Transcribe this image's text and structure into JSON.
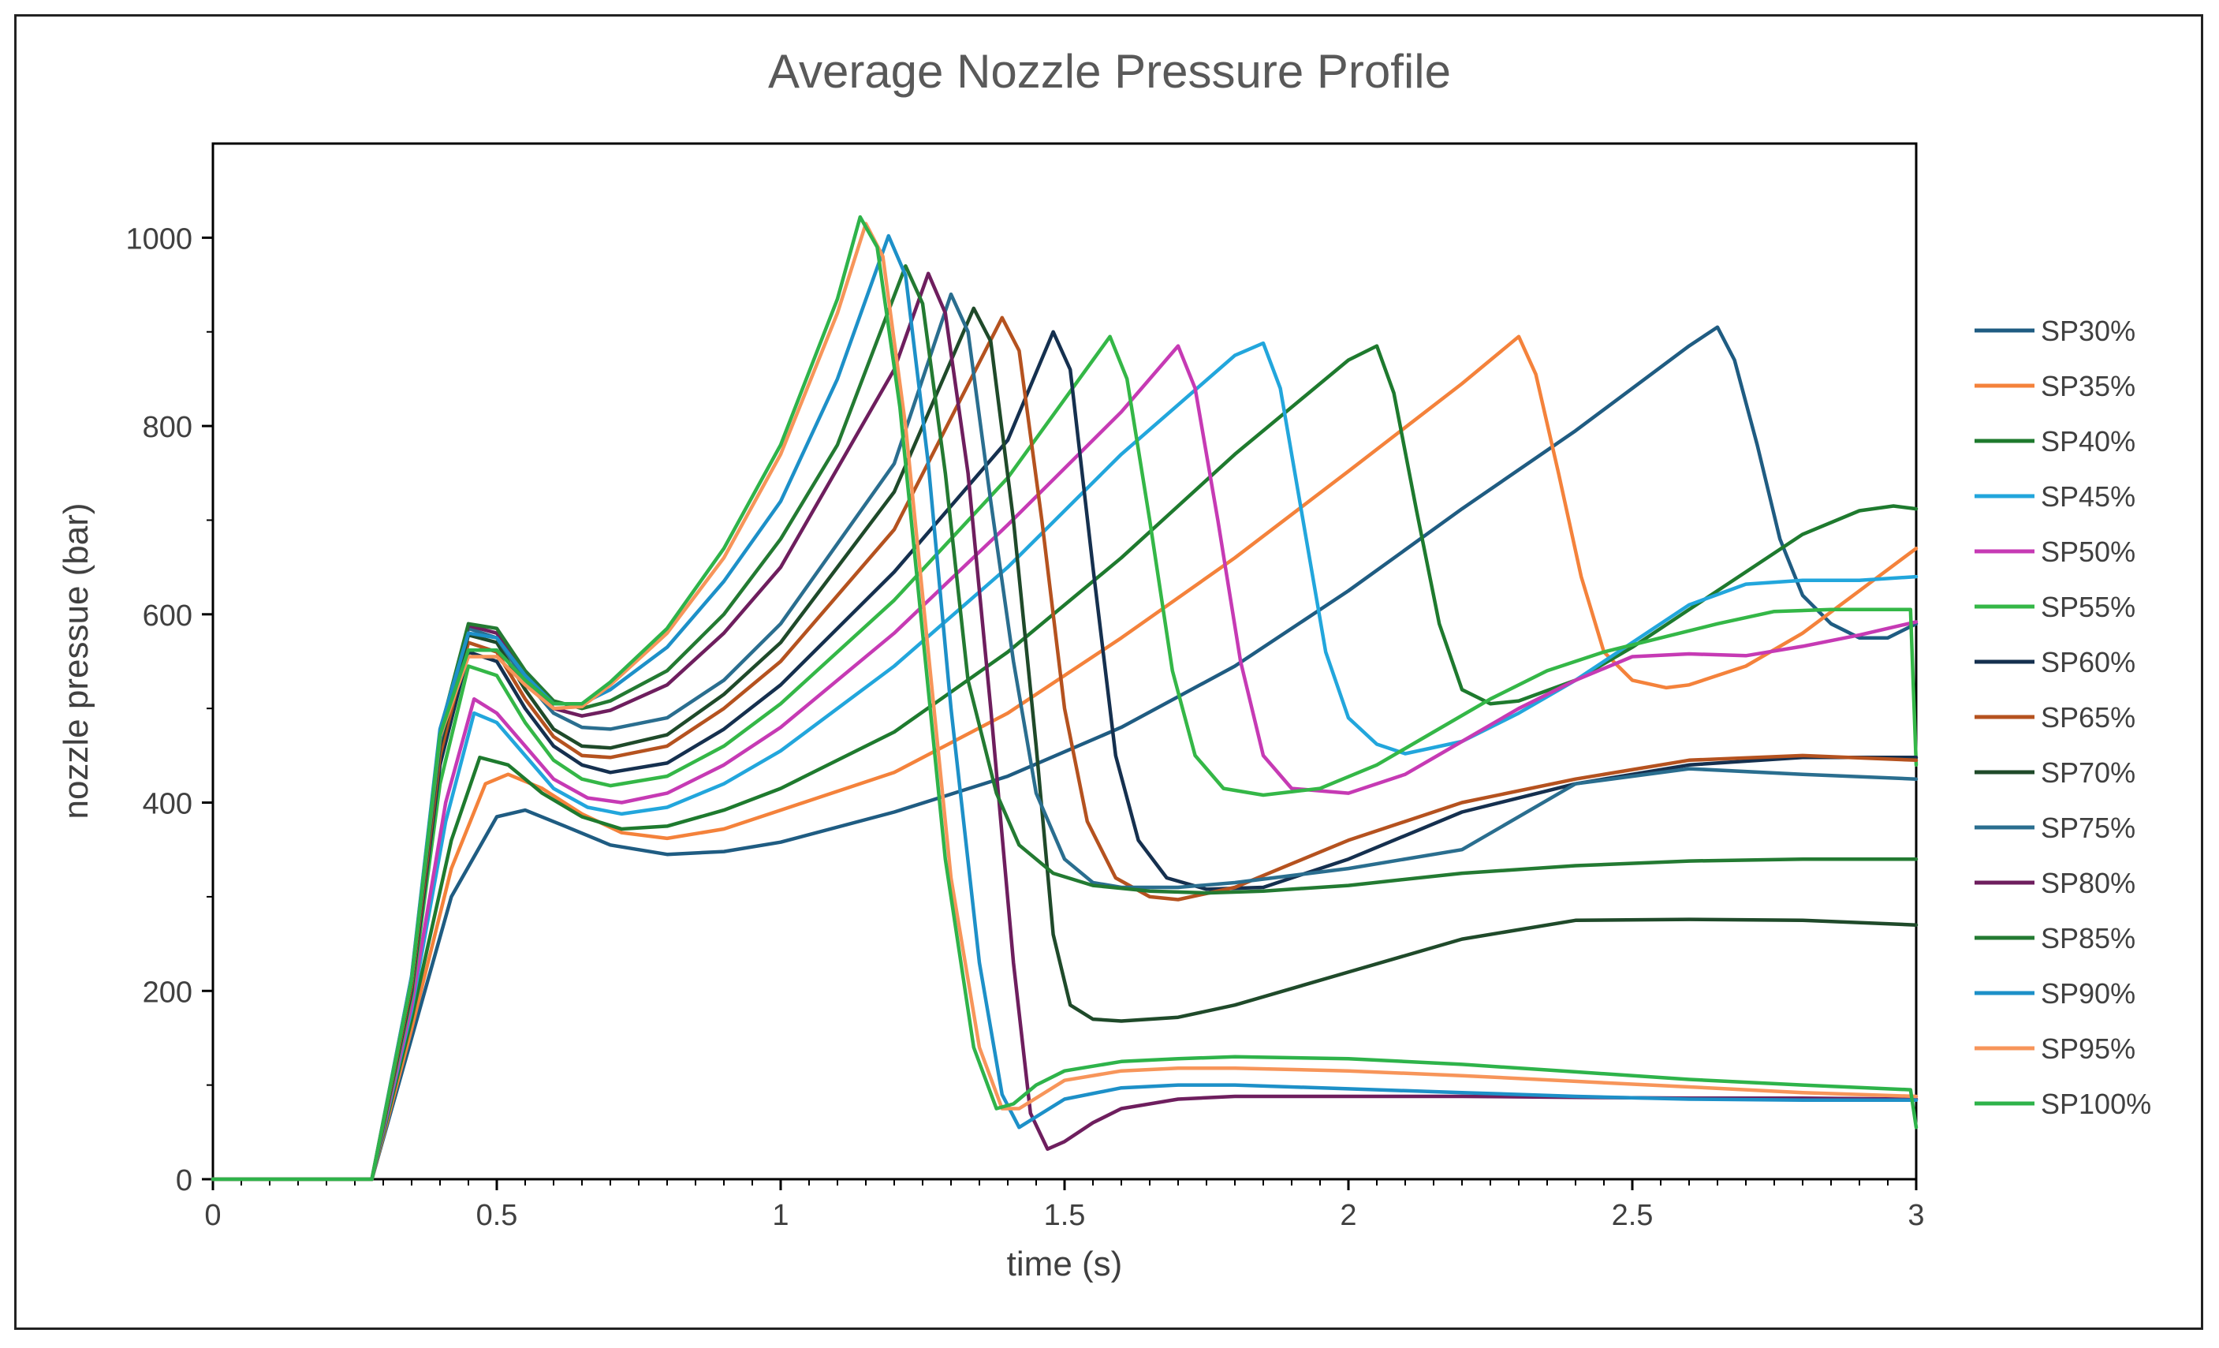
{
  "chart_data": {
    "type": "line",
    "title": "Average Nozzle Pressure Profile",
    "xlabel": "time (s)",
    "ylabel": "nozzle pressue (bar)",
    "xlim": [
      0,
      3
    ],
    "ylim": [
      0,
      1100
    ],
    "xticks": [
      0,
      0.5,
      1,
      1.5,
      2,
      2.5,
      3
    ],
    "xtick_labels": [
      "0",
      "0.5",
      "1",
      "1.5",
      "2",
      "2.5",
      "3"
    ],
    "yticks": [
      0,
      200,
      400,
      600,
      800,
      1000
    ],
    "ytick_labels": [
      "0",
      "200",
      "400",
      "600",
      "800",
      "1000"
    ],
    "legend_position": "right",
    "grid": false,
    "series": [
      {
        "name": "SP30%",
        "color": "#1f5c82",
        "x": [
          0,
          0.26,
          0.28,
          0.35,
          0.42,
          0.5,
          0.55,
          0.62,
          0.7,
          0.8,
          0.9,
          1.0,
          1.2,
          1.4,
          1.6,
          1.8,
          2.0,
          2.2,
          2.4,
          2.6,
          2.65,
          2.68,
          2.72,
          2.76,
          2.8,
          2.85,
          2.9,
          2.95,
          3.0
        ],
        "y": [
          0,
          0,
          0,
          150,
          300,
          385,
          392,
          375,
          355,
          345,
          348,
          358,
          390,
          428,
          480,
          545,
          625,
          712,
          795,
          885,
          905,
          870,
          780,
          680,
          620,
          590,
          575,
          575,
          590
        ]
      },
      {
        "name": "SP35%",
        "color": "#f4823b",
        "x": [
          0,
          0.26,
          0.28,
          0.35,
          0.42,
          0.48,
          0.52,
          0.58,
          0.65,
          0.72,
          0.8,
          0.9,
          1.0,
          1.2,
          1.4,
          1.6,
          1.8,
          2.0,
          2.2,
          2.3,
          2.33,
          2.37,
          2.41,
          2.45,
          2.5,
          2.56,
          2.6,
          2.7,
          2.8,
          2.9,
          3.0
        ],
        "y": [
          0,
          0,
          0,
          160,
          330,
          420,
          430,
          415,
          388,
          368,
          362,
          372,
          392,
          432,
          495,
          575,
          660,
          752,
          845,
          895,
          855,
          750,
          640,
          560,
          530,
          522,
          525,
          545,
          580,
          625,
          670
        ]
      },
      {
        "name": "SP40%",
        "color": "#1e7a2e",
        "x": [
          0,
          0.26,
          0.28,
          0.35,
          0.42,
          0.47,
          0.52,
          0.58,
          0.65,
          0.72,
          0.8,
          0.9,
          1.0,
          1.2,
          1.4,
          1.6,
          1.8,
          2.0,
          2.05,
          2.08,
          2.12,
          2.16,
          2.2,
          2.25,
          2.3,
          2.4,
          2.5,
          2.6,
          2.7,
          2.8,
          2.9,
          2.96,
          3.0
        ],
        "y": [
          0,
          0,
          0,
          170,
          360,
          448,
          440,
          410,
          385,
          372,
          375,
          392,
          415,
          475,
          560,
          660,
          770,
          870,
          885,
          835,
          710,
          590,
          520,
          505,
          508,
          530,
          565,
          605,
          645,
          685,
          710,
          715,
          712
        ]
      },
      {
        "name": "SP45%",
        "color": "#22a6dc",
        "x": [
          0,
          0.26,
          0.28,
          0.35,
          0.41,
          0.46,
          0.5,
          0.55,
          0.6,
          0.66,
          0.72,
          0.8,
          0.9,
          1.0,
          1.2,
          1.4,
          1.6,
          1.8,
          1.85,
          1.88,
          1.92,
          1.96,
          2.0,
          2.05,
          2.1,
          2.2,
          2.3,
          2.4,
          2.5,
          2.6,
          2.7,
          2.8,
          2.9,
          3.0
        ],
        "y": [
          0,
          0,
          0,
          180,
          380,
          495,
          485,
          450,
          415,
          395,
          388,
          395,
          420,
          455,
          545,
          650,
          770,
          875,
          888,
          840,
          700,
          560,
          490,
          462,
          452,
          465,
          495,
          530,
          570,
          610,
          632,
          636,
          636,
          640
        ]
      },
      {
        "name": "SP50%",
        "color": "#c63ab4",
        "x": [
          0,
          0.26,
          0.28,
          0.35,
          0.41,
          0.46,
          0.5,
          0.55,
          0.6,
          0.66,
          0.72,
          0.8,
          0.9,
          1.0,
          1.2,
          1.4,
          1.6,
          1.7,
          1.73,
          1.77,
          1.81,
          1.85,
          1.9,
          2.0,
          2.1,
          2.2,
          2.3,
          2.4,
          2.5,
          2.6,
          2.7,
          2.8,
          2.9,
          3.0
        ],
        "y": [
          0,
          0,
          0,
          185,
          400,
          510,
          495,
          460,
          425,
          405,
          400,
          410,
          440,
          480,
          580,
          695,
          815,
          885,
          840,
          700,
          550,
          450,
          415,
          410,
          430,
          465,
          500,
          530,
          555,
          558,
          556,
          566,
          578,
          592
        ]
      },
      {
        "name": "SP55%",
        "color": "#34b747",
        "x": [
          0,
          0.26,
          0.28,
          0.35,
          0.4,
          0.45,
          0.5,
          0.55,
          0.6,
          0.65,
          0.7,
          0.8,
          0.9,
          1.0,
          1.2,
          1.4,
          1.55,
          1.58,
          1.61,
          1.65,
          1.69,
          1.73,
          1.78,
          1.85,
          1.95,
          2.05,
          2.15,
          2.25,
          2.35,
          2.45,
          2.55,
          2.65,
          2.75,
          2.85,
          2.95,
          2.99,
          3.0
        ],
        "y": [
          0,
          0,
          0,
          195,
          420,
          545,
          535,
          485,
          445,
          425,
          418,
          428,
          460,
          505,
          615,
          745,
          870,
          895,
          850,
          700,
          540,
          450,
          415,
          408,
          415,
          440,
          475,
          510,
          540,
          560,
          575,
          590,
          603,
          605,
          605,
          605,
          440
        ]
      },
      {
        "name": "SP60%",
        "color": "#15304f",
        "x": [
          0,
          0.26,
          0.28,
          0.35,
          0.4,
          0.45,
          0.5,
          0.55,
          0.6,
          0.65,
          0.7,
          0.8,
          0.9,
          1.0,
          1.2,
          1.4,
          1.48,
          1.51,
          1.55,
          1.59,
          1.63,
          1.68,
          1.75,
          1.85,
          2.0,
          2.2,
          2.4,
          2.6,
          2.8,
          3.0
        ],
        "y": [
          0,
          0,
          0,
          200,
          440,
          560,
          550,
          500,
          460,
          440,
          432,
          442,
          478,
          525,
          645,
          785,
          900,
          860,
          650,
          450,
          360,
          320,
          308,
          310,
          340,
          390,
          420,
          440,
          448,
          448
        ]
      },
      {
        "name": "SP65%",
        "color": "#b5521f",
        "x": [
          0,
          0.26,
          0.28,
          0.35,
          0.4,
          0.45,
          0.5,
          0.55,
          0.6,
          0.65,
          0.7,
          0.8,
          0.9,
          1.0,
          1.2,
          1.39,
          1.42,
          1.46,
          1.5,
          1.54,
          1.59,
          1.65,
          1.7,
          1.8,
          1.9,
          2.0,
          2.2,
          2.4,
          2.6,
          2.8,
          3.0
        ],
        "y": [
          0,
          0,
          0,
          205,
          450,
          570,
          560,
          510,
          470,
          450,
          448,
          460,
          500,
          550,
          690,
          915,
          880,
          700,
          500,
          380,
          320,
          300,
          297,
          310,
          335,
          360,
          400,
          425,
          445,
          450,
          445
        ]
      },
      {
        "name": "SP70%",
        "color": "#1f4a2a",
        "x": [
          0,
          0.26,
          0.28,
          0.35,
          0.4,
          0.45,
          0.5,
          0.55,
          0.6,
          0.65,
          0.7,
          0.8,
          0.9,
          1.0,
          1.2,
          1.34,
          1.37,
          1.41,
          1.45,
          1.48,
          1.51,
          1.55,
          1.6,
          1.7,
          1.8,
          2.0,
          2.2,
          2.4,
          2.6,
          2.8,
          3.0
        ],
        "y": [
          0,
          0,
          0,
          210,
          460,
          578,
          570,
          520,
          478,
          460,
          458,
          472,
          515,
          570,
          730,
          925,
          890,
          700,
          460,
          260,
          185,
          170,
          168,
          172,
          185,
          220,
          255,
          275,
          276,
          275,
          270
        ]
      },
      {
        "name": "SP75%",
        "color": "#2a6e8f",
        "x": [
          0,
          0.26,
          0.28,
          0.35,
          0.4,
          0.45,
          0.5,
          0.55,
          0.6,
          0.65,
          0.7,
          0.8,
          0.9,
          1.0,
          1.2,
          1.3,
          1.33,
          1.37,
          1.41,
          1.45,
          1.5,
          1.55,
          1.6,
          1.7,
          1.8,
          2.0,
          2.2,
          2.4,
          2.6,
          2.8,
          3.0
        ],
        "y": [
          0,
          0,
          0,
          212,
          465,
          585,
          575,
          530,
          495,
          480,
          478,
          490,
          530,
          590,
          760,
          940,
          900,
          720,
          550,
          410,
          340,
          315,
          310,
          310,
          315,
          330,
          350,
          420,
          436,
          430,
          425
        ]
      },
      {
        "name": "SP80%",
        "color": "#6e1e5e",
        "x": [
          0,
          0.26,
          0.28,
          0.35,
          0.4,
          0.45,
          0.5,
          0.55,
          0.6,
          0.65,
          0.7,
          0.8,
          0.9,
          1.0,
          1.2,
          1.26,
          1.29,
          1.33,
          1.37,
          1.41,
          1.44,
          1.47,
          1.5,
          1.55,
          1.6,
          1.7,
          1.8,
          2.0,
          2.2,
          2.4,
          2.6,
          2.8,
          3.0
        ],
        "y": [
          0,
          0,
          0,
          214,
          470,
          588,
          580,
          535,
          500,
          492,
          498,
          525,
          580,
          650,
          860,
          962,
          920,
          750,
          500,
          230,
          70,
          32,
          40,
          60,
          75,
          85,
          88,
          88,
          88,
          87,
          86,
          86,
          85
        ]
      },
      {
        "name": "SP85%",
        "color": "#237a32",
        "x": [
          0,
          0.26,
          0.28,
          0.35,
          0.4,
          0.45,
          0.5,
          0.55,
          0.6,
          0.65,
          0.7,
          0.8,
          0.9,
          1.0,
          1.1,
          1.22,
          1.25,
          1.29,
          1.33,
          1.38,
          1.42,
          1.48,
          1.55,
          1.65,
          1.75,
          1.85,
          2.0,
          2.2,
          2.4,
          2.6,
          2.8,
          2.9,
          3.0
        ],
        "y": [
          0,
          0,
          0,
          215,
          475,
          590,
          585,
          540,
          508,
          500,
          508,
          540,
          600,
          680,
          780,
          970,
          930,
          750,
          530,
          410,
          355,
          325,
          312,
          306,
          304,
          306,
          312,
          325,
          333,
          338,
          340,
          340,
          340
        ]
      },
      {
        "name": "SP90%",
        "color": "#1d90c8",
        "x": [
          0,
          0.26,
          0.28,
          0.35,
          0.4,
          0.45,
          0.5,
          0.55,
          0.6,
          0.65,
          0.7,
          0.8,
          0.9,
          1.0,
          1.1,
          1.19,
          1.22,
          1.26,
          1.3,
          1.35,
          1.39,
          1.42,
          1.46,
          1.5,
          1.6,
          1.7,
          1.8,
          2.0,
          2.2,
          2.4,
          2.6,
          2.8,
          3.0
        ],
        "y": [
          0,
          0,
          0,
          216,
          478,
          580,
          575,
          535,
          505,
          505,
          520,
          565,
          635,
          720,
          850,
          1002,
          960,
          760,
          500,
          230,
          90,
          55,
          70,
          85,
          97,
          100,
          100,
          96,
          92,
          88,
          85,
          84,
          84
        ]
      },
      {
        "name": "SP95%",
        "color": "#f7955a",
        "x": [
          0,
          0.26,
          0.28,
          0.35,
          0.4,
          0.45,
          0.5,
          0.55,
          0.6,
          0.65,
          0.7,
          0.8,
          0.9,
          1.0,
          1.1,
          1.15,
          1.18,
          1.22,
          1.26,
          1.3,
          1.35,
          1.39,
          1.42,
          1.46,
          1.5,
          1.6,
          1.7,
          1.8,
          2.0,
          2.2,
          2.4,
          2.6,
          2.8,
          3.0
        ],
        "y": [
          0,
          0,
          0,
          212,
          470,
          555,
          555,
          525,
          500,
          502,
          525,
          580,
          660,
          770,
          920,
          1015,
          980,
          800,
          560,
          320,
          140,
          75,
          75,
          90,
          105,
          115,
          118,
          118,
          115,
          110,
          104,
          98,
          92,
          88
        ]
      },
      {
        "name": "SP100%",
        "color": "#2eb34a",
        "x": [
          0,
          0.26,
          0.28,
          0.35,
          0.4,
          0.45,
          0.5,
          0.55,
          0.6,
          0.65,
          0.7,
          0.8,
          0.9,
          1.0,
          1.1,
          1.14,
          1.17,
          1.21,
          1.25,
          1.29,
          1.34,
          1.38,
          1.41,
          1.45,
          1.5,
          1.6,
          1.7,
          1.8,
          2.0,
          2.2,
          2.4,
          2.6,
          2.8,
          2.99,
          3.0
        ],
        "y": [
          0,
          0,
          0,
          212,
          472,
          562,
          562,
          530,
          505,
          505,
          528,
          585,
          670,
          780,
          935,
          1022,
          990,
          820,
          580,
          340,
          140,
          75,
          80,
          100,
          115,
          125,
          128,
          130,
          128,
          122,
          114,
          106,
          100,
          95,
          55
        ]
      }
    ]
  }
}
